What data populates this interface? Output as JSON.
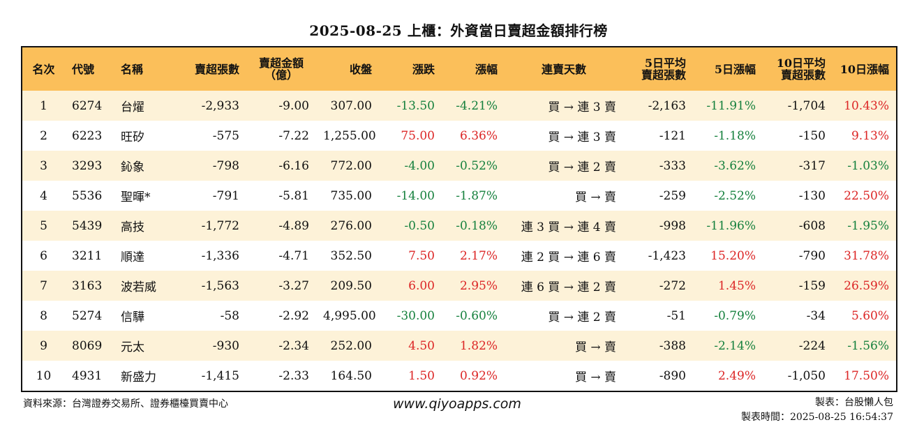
{
  "title": "2025-08-25 上櫃：外資當日賣超金額排行榜",
  "headers": [
    "名次",
    "代號",
    "名稱",
    "賣超張數",
    "賣超金額\n（億）",
    "收盤",
    "漲跌",
    "漲幅",
    "連賣天數",
    "5日平均\n賣超張數",
    "5日漲幅",
    "10日平均\n賣超張數",
    "10日漲幅"
  ],
  "rows": [
    {
      "rank": "1",
      "code": "6274",
      "name": "台燿",
      "sell_lots": "-2,933",
      "sell_amount": "-9.00",
      "close": "307.00",
      "change": "-13.50",
      "pct": "-4.21%",
      "streak": "買 → 連 3 賣",
      "avg5": "-2,163",
      "pct5": "-11.91%",
      "avg10": "-1,704",
      "pct10": "10.43%"
    },
    {
      "rank": "2",
      "code": "6223",
      "name": "旺矽",
      "sell_lots": "-575",
      "sell_amount": "-7.22",
      "close": "1,255.00",
      "change": "75.00",
      "pct": "6.36%",
      "streak": "買 → 連 3 賣",
      "avg5": "-121",
      "pct5": "-1.18%",
      "avg10": "-150",
      "pct10": "9.13%"
    },
    {
      "rank": "3",
      "code": "3293",
      "name": "鈊象",
      "sell_lots": "-798",
      "sell_amount": "-6.16",
      "close": "772.00",
      "change": "-4.00",
      "pct": "-0.52%",
      "streak": "買 → 連 2 賣",
      "avg5": "-333",
      "pct5": "-3.62%",
      "avg10": "-317",
      "pct10": "-1.03%"
    },
    {
      "rank": "4",
      "code": "5536",
      "name": "聖暉*",
      "sell_lots": "-791",
      "sell_amount": "-5.81",
      "close": "735.00",
      "change": "-14.00",
      "pct": "-1.87%",
      "streak": "買 → 賣",
      "avg5": "-259",
      "pct5": "-2.52%",
      "avg10": "-130",
      "pct10": "22.50%"
    },
    {
      "rank": "5",
      "code": "5439",
      "name": "高技",
      "sell_lots": "-1,772",
      "sell_amount": "-4.89",
      "close": "276.00",
      "change": "-0.50",
      "pct": "-0.18%",
      "streak": "連 3 買 → 連 4 賣",
      "avg5": "-998",
      "pct5": "-11.96%",
      "avg10": "-608",
      "pct10": "-1.95%"
    },
    {
      "rank": "6",
      "code": "3211",
      "name": "順達",
      "sell_lots": "-1,336",
      "sell_amount": "-4.71",
      "close": "352.50",
      "change": "7.50",
      "pct": "2.17%",
      "streak": "連 2 買 → 連 6 賣",
      "avg5": "-1,423",
      "pct5": "15.20%",
      "avg10": "-790",
      "pct10": "31.78%"
    },
    {
      "rank": "7",
      "code": "3163",
      "name": "波若威",
      "sell_lots": "-1,563",
      "sell_amount": "-3.27",
      "close": "209.50",
      "change": "6.00",
      "pct": "2.95%",
      "streak": "連 6 買 → 連 2 賣",
      "avg5": "-272",
      "pct5": "1.45%",
      "avg10": "-159",
      "pct10": "26.59%"
    },
    {
      "rank": "8",
      "code": "5274",
      "name": "信驊",
      "sell_lots": "-58",
      "sell_amount": "-2.92",
      "close": "4,995.00",
      "change": "-30.00",
      "pct": "-0.60%",
      "streak": "買 → 連 2 賣",
      "avg5": "-51",
      "pct5": "-0.79%",
      "avg10": "-34",
      "pct10": "5.60%"
    },
    {
      "rank": "9",
      "code": "8069",
      "name": "元太",
      "sell_lots": "-930",
      "sell_amount": "-2.34",
      "close": "252.00",
      "change": "4.50",
      "pct": "1.82%",
      "streak": "買 → 賣",
      "avg5": "-388",
      "pct5": "-2.14%",
      "avg10": "-224",
      "pct10": "-1.56%"
    },
    {
      "rank": "10",
      "code": "4931",
      "name": "新盛力",
      "sell_lots": "-1,415",
      "sell_amount": "-2.33",
      "close": "164.50",
      "change": "1.50",
      "pct": "0.92%",
      "streak": "買 → 賣",
      "avg5": "-890",
      "pct5": "2.49%",
      "avg10": "-1,050",
      "pct10": "17.50%"
    }
  ],
  "colors": {
    "header_bg": "#fbbf5a",
    "row_alt_bg": "#fdf2d8",
    "negative": "#15803d",
    "positive": "#dc2626"
  },
  "footer": {
    "source": "資料來源：台灣證券交易所、證券櫃檯買賣中心",
    "website": "www.qiyoapps.com",
    "maker": "製表：台股懶人包",
    "time": "製表時間：2025-08-25 16:54:37"
  }
}
